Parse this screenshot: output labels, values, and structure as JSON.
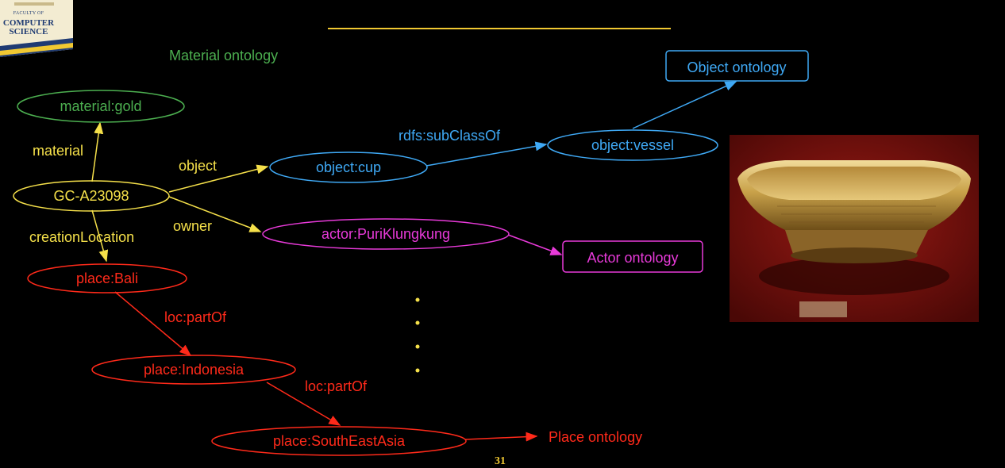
{
  "logo": {
    "line1": "FACULTY OF",
    "line2": "COMPUTER",
    "line3": "SCIENCE"
  },
  "colors": {
    "green": "#4caf50",
    "yellow": "#f5e04a",
    "blue": "#3fa9f5",
    "magenta": "#e83ad9",
    "red": "#ff2a1a",
    "accent": "#f0c832"
  },
  "labels": {
    "material_ontology": "Material ontology",
    "object_ontology": "Object ontology",
    "actor_ontology": "Actor ontology",
    "place_ontology": "Place ontology"
  },
  "nodes": {
    "material_gold": "material:gold",
    "gc": "GC-A23098",
    "object_cup": "object:cup",
    "object_vessel": "object:vessel",
    "actor": "actor:PuriKlungkung",
    "bali": "place:Bali",
    "indonesia": "place:Indonesia",
    "sea": "place:SouthEastAsia"
  },
  "edges": {
    "material": "material",
    "object": "object",
    "owner": "owner",
    "creation": "creationLocation",
    "subclass": "rdfs:subClassOf",
    "partof1": "loc:partOf",
    "partof2": "loc:partOf"
  },
  "page_number": "31"
}
